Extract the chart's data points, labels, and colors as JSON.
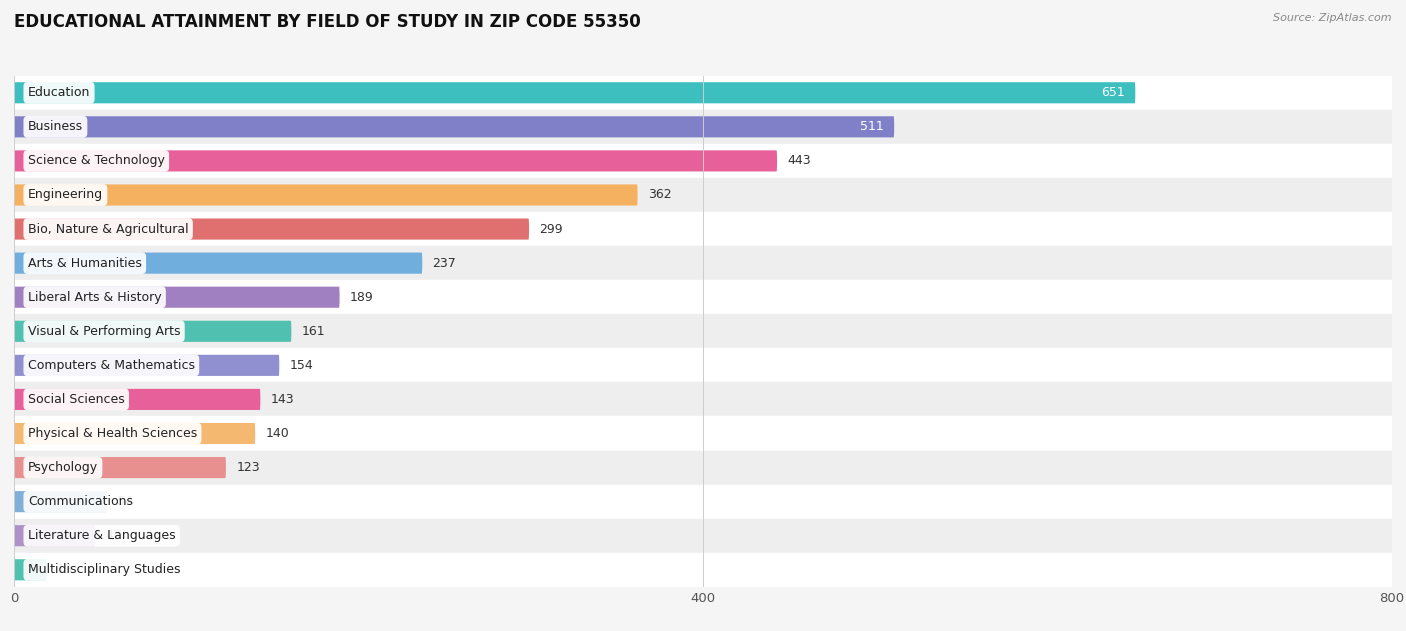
{
  "title": "EDUCATIONAL ATTAINMENT BY FIELD OF STUDY IN ZIP CODE 55350",
  "source": "Source: ZipAtlas.com",
  "categories": [
    "Education",
    "Business",
    "Science & Technology",
    "Engineering",
    "Bio, Nature & Agricultural",
    "Arts & Humanities",
    "Liberal Arts & History",
    "Visual & Performing Arts",
    "Computers & Mathematics",
    "Social Sciences",
    "Physical & Health Sciences",
    "Psychology",
    "Communications",
    "Literature & Languages",
    "Multidisciplinary Studies"
  ],
  "values": [
    651,
    511,
    443,
    362,
    299,
    237,
    189,
    161,
    154,
    143,
    140,
    123,
    54,
    47,
    19
  ],
  "bar_colors": [
    "#3dbfbf",
    "#8080c8",
    "#e8609a",
    "#f5b060",
    "#e07070",
    "#6faedd",
    "#a080c0",
    "#50c0b0",
    "#9090d0",
    "#e8609a",
    "#f5b870",
    "#e89090",
    "#80b0d8",
    "#b090c8",
    "#50c0b0"
  ],
  "xlim": [
    0,
    800
  ],
  "background_color": "#f5f5f5",
  "row_bg_even": "#ffffff",
  "row_bg_odd": "#eeeeee",
  "title_fontsize": 12,
  "label_fontsize": 9,
  "value_fontsize": 9,
  "bar_height": 0.62
}
